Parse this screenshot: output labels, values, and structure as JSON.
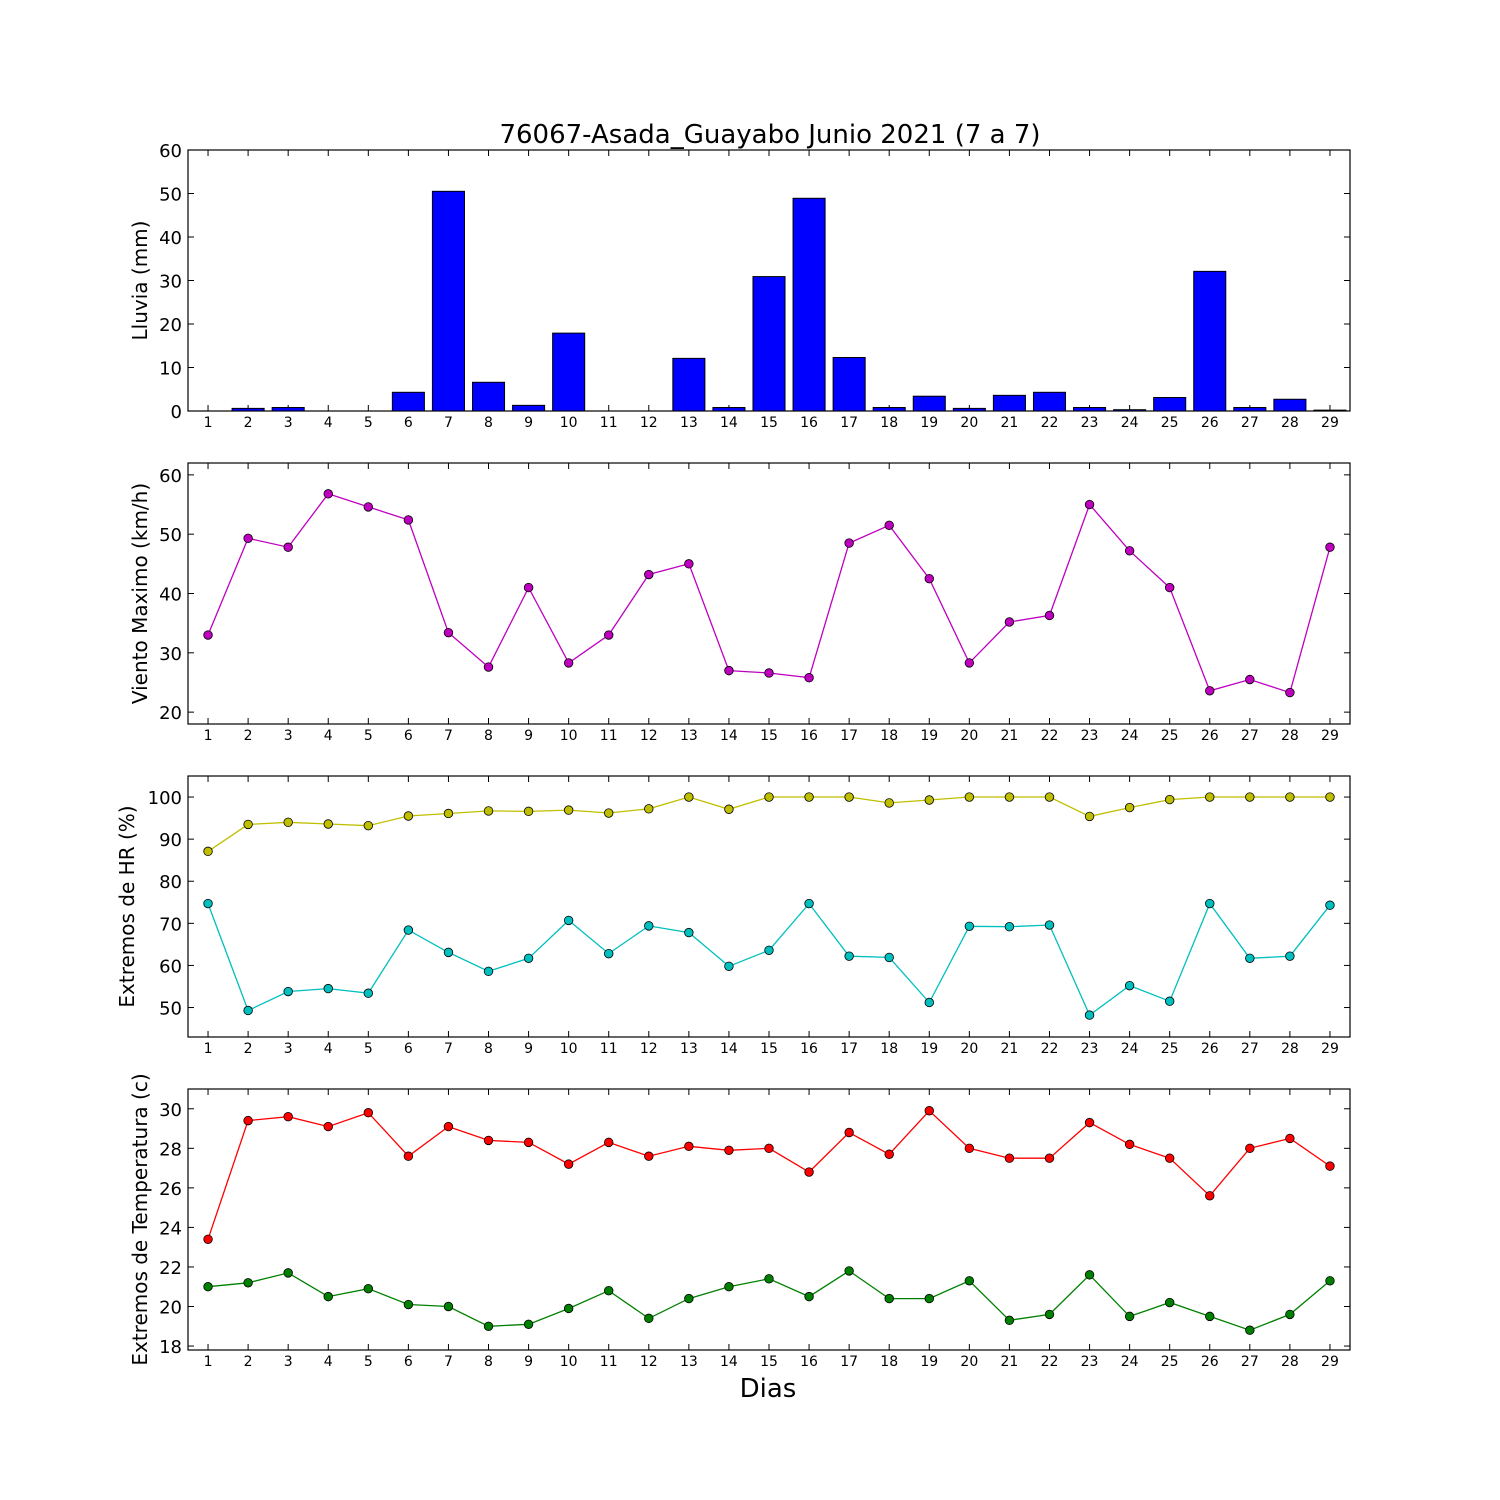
{
  "title": "76067-Asada_Guayabo Junio 2021  (7 a 7)",
  "xlabel": "Dias",
  "colors": {
    "bars": "#0000ff",
    "viento": "#bf00bf",
    "hr_max": "#bfbf00",
    "hr_min": "#00bfbf",
    "temp_max": "#ff0000",
    "temp_min": "#008000"
  },
  "chart_data": [
    {
      "type": "bar",
      "ylabel": "Lluvia (mm)",
      "x": [
        1,
        2,
        3,
        4,
        5,
        6,
        7,
        8,
        9,
        10,
        11,
        12,
        13,
        14,
        15,
        16,
        17,
        18,
        19,
        20,
        21,
        22,
        23,
        24,
        25,
        26,
        27,
        28,
        29
      ],
      "ylim": [
        0,
        60
      ],
      "yticks": [
        0,
        10,
        20,
        30,
        40,
        50,
        60
      ],
      "series": [
        {
          "values": [
            0,
            0.6,
            0.8,
            0,
            0,
            4.3,
            50.5,
            6.6,
            1.3,
            17.9,
            0,
            0,
            12.1,
            0.8,
            30.9,
            48.9,
            12.3,
            0.8,
            3.4,
            0.6,
            3.6,
            4.3,
            0.8,
            0.3,
            3.1,
            32.1,
            0.8,
            2.7,
            0.2
          ]
        }
      ]
    },
    {
      "type": "line",
      "ylabel": "Viento Maximo (km/h)",
      "x": [
        1,
        2,
        3,
        4,
        5,
        6,
        7,
        8,
        9,
        10,
        11,
        12,
        13,
        14,
        15,
        16,
        17,
        18,
        19,
        20,
        21,
        22,
        23,
        24,
        25,
        26,
        27,
        28,
        29
      ],
      "ylim": [
        18,
        62
      ],
      "yticks": [
        20,
        30,
        40,
        50,
        60
      ],
      "series": [
        {
          "values": [
            33.0,
            49.3,
            47.8,
            56.8,
            54.6,
            52.4,
            33.4,
            27.6,
            41.0,
            28.3,
            33.0,
            43.2,
            45.0,
            27.0,
            26.6,
            25.8,
            48.5,
            51.5,
            42.5,
            28.3,
            35.2,
            36.3,
            55.0,
            47.2,
            41.0,
            23.6,
            25.5,
            23.3,
            47.8
          ]
        }
      ]
    },
    {
      "type": "line",
      "ylabel": "Extremos de HR (%)",
      "x": [
        1,
        2,
        3,
        4,
        5,
        6,
        7,
        8,
        9,
        10,
        11,
        12,
        13,
        14,
        15,
        16,
        17,
        18,
        19,
        20,
        21,
        22,
        23,
        24,
        25,
        26,
        27,
        28,
        29
      ],
      "ylim": [
        43,
        105
      ],
      "yticks": [
        50,
        60,
        70,
        80,
        90,
        100
      ],
      "series": [
        {
          "values": [
            87.1,
            93.5,
            94.0,
            93.6,
            93.2,
            95.5,
            96.1,
            96.7,
            96.6,
            96.9,
            96.2,
            97.2,
            100,
            97.1,
            100,
            100,
            100,
            98.6,
            99.3,
            100,
            100,
            100,
            95.4,
            97.5,
            99.4,
            100,
            100,
            100,
            100
          ]
        },
        {
          "values": [
            74.7,
            49.3,
            53.8,
            54.5,
            53.4,
            68.4,
            63.1,
            58.6,
            61.7,
            70.7,
            62.8,
            69.4,
            67.8,
            59.8,
            63.6,
            74.7,
            62.2,
            61.9,
            51.2,
            69.3,
            69.2,
            69.6,
            48.2,
            55.2,
            51.5,
            74.7,
            61.7,
            62.2,
            74.3
          ]
        }
      ]
    },
    {
      "type": "line",
      "ylabel": "Extremos de Temperatura (c)",
      "x": [
        1,
        2,
        3,
        4,
        5,
        6,
        7,
        8,
        9,
        10,
        11,
        12,
        13,
        14,
        15,
        16,
        17,
        18,
        19,
        20,
        21,
        22,
        23,
        24,
        25,
        26,
        27,
        28,
        29
      ],
      "ylim": [
        17.8,
        31.0
      ],
      "yticks": [
        18,
        20,
        22,
        24,
        26,
        28,
        30
      ],
      "series": [
        {
          "values": [
            23.4,
            29.4,
            29.6,
            29.1,
            29.8,
            27.6,
            29.1,
            28.4,
            28.3,
            27.2,
            28.3,
            27.6,
            28.1,
            27.9,
            28.0,
            26.8,
            28.8,
            27.7,
            29.9,
            28.0,
            27.5,
            27.5,
            29.3,
            28.2,
            27.5,
            25.6,
            28.0,
            28.5,
            27.1
          ]
        },
        {
          "values": [
            21.0,
            21.2,
            21.7,
            20.5,
            20.9,
            20.1,
            20.0,
            19.0,
            19.1,
            19.9,
            20.8,
            19.4,
            20.4,
            21.0,
            21.4,
            20.5,
            21.8,
            20.4,
            20.4,
            21.3,
            19.3,
            19.6,
            21.6,
            19.5,
            20.2,
            19.5,
            18.8,
            19.6,
            21.3
          ]
        }
      ]
    }
  ]
}
